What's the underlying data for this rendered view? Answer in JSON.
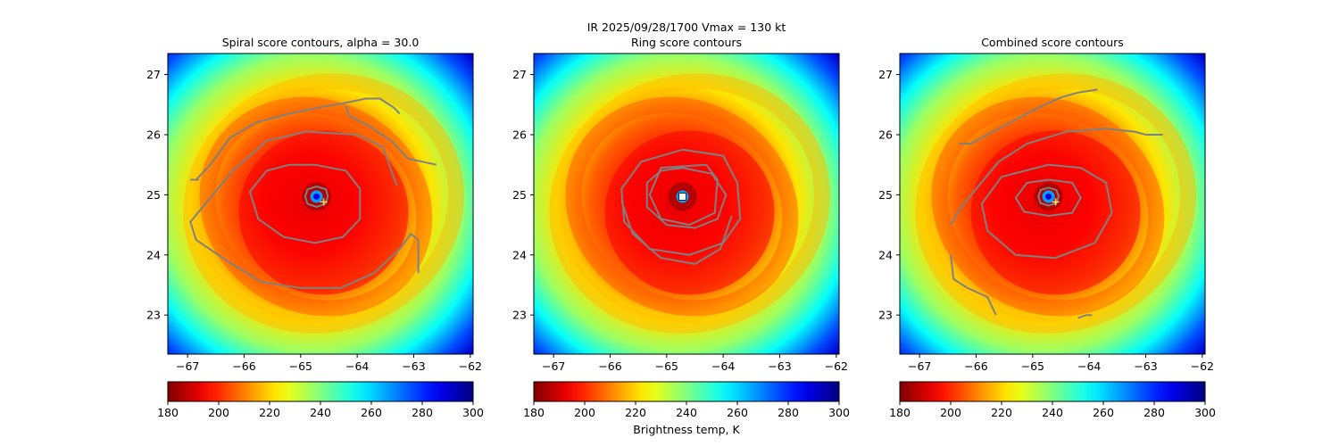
{
  "figure": {
    "suptitle_line1": "IR  2025/09/28/1700    Vmax = 130 kt",
    "colorbar_label": "Brightness temp, K",
    "colormap": "jet_reversed",
    "storm_center": {
      "lon": -64.72,
      "lat": 24.97
    }
  },
  "chart_data": [
    {
      "type": "heatmap",
      "title": "Spiral score contours, alpha = 30.0",
      "xlim": [
        -67.35,
        -61.95
      ],
      "ylim": [
        22.35,
        27.35
      ],
      "xticks": [
        -67,
        -66,
        -65,
        -64,
        -63,
        -62
      ],
      "yticks": [
        23,
        24,
        25,
        26,
        27
      ],
      "colorbar": {
        "vmin": 180,
        "vmax": 300,
        "ticks": [
          180,
          200,
          220,
          240,
          260,
          280,
          300
        ]
      },
      "contour_color": "#808080",
      "center_marker": "plus",
      "contours": [
        [
          [
            -66.85,
            25.25
          ],
          [
            -66.6,
            25.5
          ],
          [
            -66.25,
            25.95
          ],
          [
            -65.8,
            26.2
          ],
          [
            -65.2,
            26.35
          ],
          [
            -64.7,
            26.45
          ],
          [
            -64.25,
            26.52
          ],
          [
            -63.85,
            26.6
          ],
          [
            -63.6,
            26.6
          ],
          [
            -63.35,
            26.45
          ],
          [
            -63.25,
            26.35
          ]
        ],
        [
          [
            -64.2,
            26.48
          ],
          [
            -64.15,
            26.32
          ],
          [
            -63.8,
            26.15
          ],
          [
            -63.4,
            25.9
          ],
          [
            -63.1,
            25.6
          ],
          [
            -62.6,
            25.5
          ]
        ],
        [
          [
            -66.95,
            25.25
          ],
          [
            -66.8,
            25.25
          ]
        ],
        [
          [
            -63.3,
            25.15
          ],
          [
            -63.55,
            25.8
          ],
          [
            -64.0,
            26.0
          ],
          [
            -64.9,
            26.05
          ],
          [
            -65.6,
            25.9
          ],
          [
            -66.2,
            25.4
          ],
          [
            -66.6,
            24.95
          ],
          [
            -66.95,
            24.55
          ],
          [
            -66.85,
            24.25
          ],
          [
            -66.3,
            23.9
          ],
          [
            -65.7,
            23.55
          ],
          [
            -65.0,
            23.45
          ],
          [
            -64.3,
            23.45
          ],
          [
            -63.7,
            23.7
          ],
          [
            -63.25,
            24.1
          ],
          [
            -63.05,
            24.35
          ],
          [
            -62.92,
            24.25
          ],
          [
            -62.92,
            23.7
          ]
        ],
        [
          [
            -64.75,
            25.5
          ],
          [
            -64.2,
            25.4
          ],
          [
            -63.95,
            25.1
          ],
          [
            -63.95,
            24.6
          ],
          [
            -64.25,
            24.3
          ],
          [
            -64.75,
            24.2
          ],
          [
            -65.3,
            24.3
          ],
          [
            -65.75,
            24.6
          ],
          [
            -65.9,
            25.05
          ],
          [
            -65.6,
            25.4
          ],
          [
            -65.2,
            25.5
          ],
          [
            -64.75,
            25.5
          ]
        ],
        [
          [
            -64.72,
            25.14
          ],
          [
            -64.55,
            25.09
          ],
          [
            -64.52,
            24.97
          ],
          [
            -64.56,
            24.85
          ],
          [
            -64.72,
            24.8
          ],
          [
            -64.88,
            24.85
          ],
          [
            -64.92,
            24.97
          ],
          [
            -64.88,
            25.09
          ],
          [
            -64.72,
            25.14
          ]
        ]
      ]
    },
    {
      "type": "heatmap",
      "title": "Ring score contours",
      "xlim": [
        -67.35,
        -61.95
      ],
      "ylim": [
        22.35,
        27.35
      ],
      "xticks": [
        -67,
        -66,
        -65,
        -64,
        -63,
        -62
      ],
      "yticks": [
        23,
        24,
        25,
        26,
        27
      ],
      "colorbar": {
        "vmin": 180,
        "vmax": 300,
        "ticks": [
          180,
          200,
          220,
          240,
          260,
          280,
          300
        ]
      },
      "contour_color": "#808080",
      "center_marker": "square",
      "contours": [
        [
          [
            -64.72,
            25.45
          ],
          [
            -64.2,
            25.35
          ],
          [
            -63.95,
            25.0
          ],
          [
            -64.1,
            24.6
          ],
          [
            -64.5,
            24.45
          ],
          [
            -65.0,
            24.5
          ],
          [
            -65.35,
            24.8
          ],
          [
            -65.35,
            25.2
          ],
          [
            -65.1,
            25.4
          ],
          [
            -64.72,
            25.45
          ]
        ],
        [
          [
            -64.72,
            25.75
          ],
          [
            -64.0,
            25.65
          ],
          [
            -63.75,
            25.2
          ],
          [
            -63.7,
            24.6
          ],
          [
            -64.0,
            24.2
          ],
          [
            -64.6,
            24.0
          ],
          [
            -65.3,
            24.1
          ],
          [
            -65.75,
            24.55
          ],
          [
            -65.8,
            25.1
          ],
          [
            -65.45,
            25.55
          ],
          [
            -64.72,
            25.75
          ]
        ],
        [
          [
            -64.3,
            25.5
          ],
          [
            -64.1,
            25.25
          ],
          [
            -64.15,
            24.7
          ],
          [
            -64.6,
            24.5
          ],
          [
            -65.1,
            24.6
          ],
          [
            -65.3,
            25.0
          ],
          [
            -65.1,
            25.45
          ],
          [
            -64.3,
            25.5
          ]
        ],
        [
          [
            -65.8,
            24.9
          ],
          [
            -65.6,
            24.35
          ],
          [
            -65.1,
            23.95
          ],
          [
            -64.5,
            23.85
          ],
          [
            -64.05,
            24.1
          ],
          [
            -63.85,
            24.65
          ]
        ]
      ]
    },
    {
      "type": "heatmap",
      "title": "Combined score contours",
      "xlim": [
        -67.35,
        -61.95
      ],
      "ylim": [
        22.35,
        27.35
      ],
      "xticks": [
        -67,
        -66,
        -65,
        -64,
        -63,
        -62
      ],
      "yticks": [
        23,
        24,
        25,
        26,
        27
      ],
      "colorbar": {
        "vmin": 180,
        "vmax": 300,
        "ticks": [
          180,
          200,
          220,
          240,
          260,
          280,
          300
        ]
      },
      "contour_color": "#808080",
      "center_marker": "plus",
      "contours": [
        [
          [
            -66.3,
            25.85
          ],
          [
            -66.1,
            25.85
          ],
          [
            -65.8,
            26.0
          ],
          [
            -65.4,
            26.2
          ],
          [
            -64.9,
            26.45
          ],
          [
            -64.5,
            26.62
          ],
          [
            -64.2,
            26.7
          ],
          [
            -63.85,
            26.75
          ]
        ],
        [
          [
            -66.45,
            24.5
          ],
          [
            -66.3,
            24.75
          ],
          [
            -66.0,
            25.1
          ],
          [
            -65.6,
            25.55
          ],
          [
            -65.1,
            25.85
          ],
          [
            -64.4,
            26.05
          ],
          [
            -63.7,
            26.1
          ],
          [
            -63.2,
            26.05
          ],
          [
            -63.0,
            26.0
          ],
          [
            -62.7,
            26.0
          ]
        ],
        [
          [
            -66.45,
            24.0
          ],
          [
            -66.4,
            23.6
          ],
          [
            -66.15,
            23.45
          ],
          [
            -65.8,
            23.3
          ],
          [
            -65.65,
            23.0
          ]
        ],
        [
          [
            -64.72,
            25.5
          ],
          [
            -64.15,
            25.45
          ],
          [
            -63.7,
            25.2
          ],
          [
            -63.6,
            24.7
          ],
          [
            -63.9,
            24.2
          ],
          [
            -64.6,
            23.95
          ],
          [
            -65.3,
            24.0
          ],
          [
            -65.8,
            24.4
          ],
          [
            -65.9,
            24.85
          ],
          [
            -65.55,
            25.3
          ],
          [
            -64.72,
            25.5
          ]
        ],
        [
          [
            -64.72,
            25.25
          ],
          [
            -64.3,
            25.2
          ],
          [
            -64.15,
            24.95
          ],
          [
            -64.3,
            24.7
          ],
          [
            -64.72,
            24.65
          ],
          [
            -65.15,
            24.72
          ],
          [
            -65.3,
            24.95
          ],
          [
            -65.1,
            25.2
          ],
          [
            -64.72,
            25.25
          ]
        ],
        [
          [
            -64.72,
            25.12
          ],
          [
            -64.58,
            25.08
          ],
          [
            -64.54,
            24.97
          ],
          [
            -64.58,
            24.86
          ],
          [
            -64.72,
            24.82
          ],
          [
            -64.86,
            24.86
          ],
          [
            -64.9,
            24.97
          ],
          [
            -64.86,
            25.08
          ],
          [
            -64.72,
            25.12
          ]
        ],
        [
          [
            -64.2,
            22.95
          ],
          [
            -64.05,
            23.0
          ],
          [
            -63.95,
            23.0
          ]
        ]
      ]
    }
  ]
}
